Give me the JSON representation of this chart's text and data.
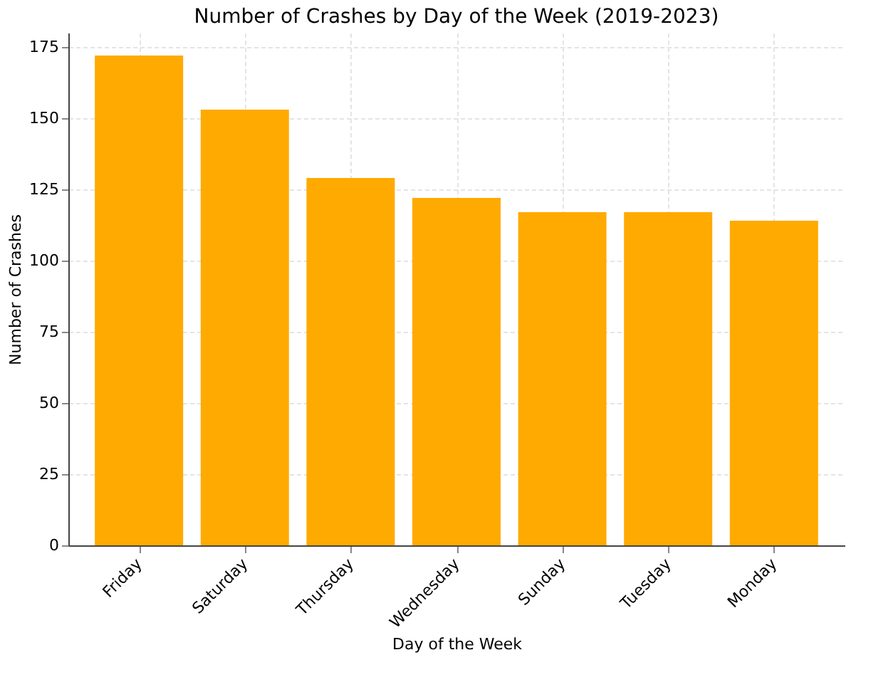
{
  "chart_data": {
    "type": "bar",
    "title": "Number of Crashes by Day of the Week (2019-2023)",
    "xlabel": "Day of the Week",
    "ylabel": "Number of Crashes",
    "categories": [
      "Friday",
      "Saturday",
      "Thursday",
      "Wednesday",
      "Sunday",
      "Tuesday",
      "Monday"
    ],
    "values": [
      172,
      153,
      129,
      122,
      117,
      117,
      114
    ],
    "color": "#ffaa00",
    "ylim": [
      0,
      180
    ],
    "yticks": [
      0,
      25,
      50,
      75,
      100,
      125,
      150,
      175
    ],
    "grid": true
  }
}
